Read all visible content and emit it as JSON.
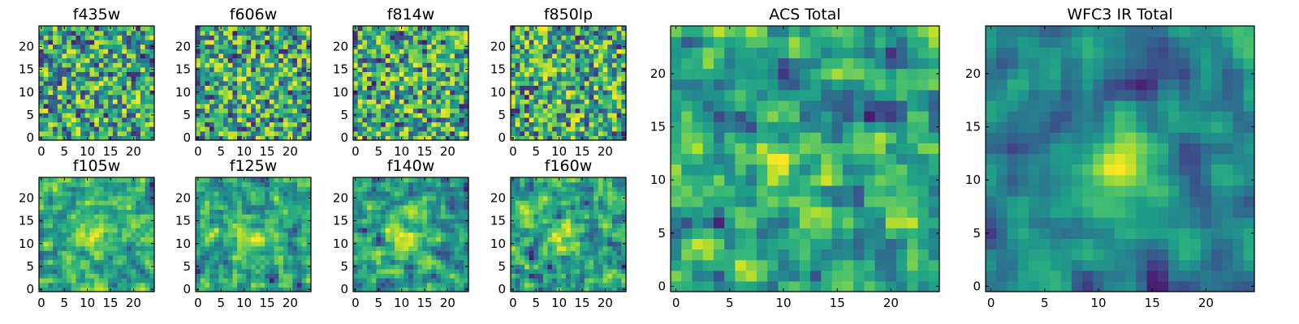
{
  "figure": {
    "colormap": "viridis",
    "colors": {
      "axis": "#000000",
      "background": "#ffffff"
    }
  },
  "chart_data": [
    {
      "type": "heatmap",
      "title": "f435w",
      "grid_size": 25,
      "xlim": [
        0,
        24
      ],
      "ylim": [
        0,
        24
      ],
      "x_ticks": [
        "0",
        "5",
        "10",
        "15",
        "20"
      ],
      "y_ticks": [
        "0",
        "5",
        "10",
        "15",
        "20"
      ],
      "value_range": [
        0,
        1
      ],
      "seed": 11,
      "smoothing": 0,
      "central_source": 0.05
    },
    {
      "type": "heatmap",
      "title": "f606w",
      "grid_size": 25,
      "xlim": [
        0,
        24
      ],
      "ylim": [
        0,
        24
      ],
      "x_ticks": [
        "0",
        "5",
        "10",
        "15",
        "20"
      ],
      "y_ticks": [
        "0",
        "5",
        "10",
        "15",
        "20"
      ],
      "value_range": [
        0,
        1
      ],
      "seed": 23,
      "smoothing": 0,
      "central_source": 0.08
    },
    {
      "type": "heatmap",
      "title": "f814w",
      "grid_size": 25,
      "xlim": [
        0,
        24
      ],
      "ylim": [
        0,
        24
      ],
      "x_ticks": [
        "0",
        "5",
        "10",
        "15",
        "20"
      ],
      "y_ticks": [
        "0",
        "5",
        "10",
        "15",
        "20"
      ],
      "value_range": [
        0,
        1
      ],
      "seed": 37,
      "smoothing": 0,
      "central_source": 0.05
    },
    {
      "type": "heatmap",
      "title": "f850lp",
      "grid_size": 25,
      "xlim": [
        0,
        24
      ],
      "ylim": [
        0,
        24
      ],
      "x_ticks": [
        "0",
        "5",
        "10",
        "15",
        "20"
      ],
      "y_ticks": [
        "0",
        "5",
        "10",
        "15",
        "20"
      ],
      "value_range": [
        0,
        1
      ],
      "seed": 41,
      "smoothing": 0,
      "central_source": 0.04
    },
    {
      "type": "heatmap",
      "title": "f105w",
      "grid_size": 25,
      "xlim": [
        0,
        24
      ],
      "ylim": [
        0,
        24
      ],
      "x_ticks": [
        "0",
        "5",
        "10",
        "15",
        "20"
      ],
      "y_ticks": [
        "0",
        "5",
        "10",
        "15",
        "20"
      ],
      "value_range": [
        0,
        1
      ],
      "seed": 53,
      "smoothing": 1,
      "central_source": 0.22
    },
    {
      "type": "heatmap",
      "title": "f125w",
      "grid_size": 25,
      "xlim": [
        0,
        24
      ],
      "ylim": [
        0,
        24
      ],
      "x_ticks": [
        "0",
        "5",
        "10",
        "15",
        "20"
      ],
      "y_ticks": [
        "0",
        "5",
        "10",
        "15",
        "20"
      ],
      "value_range": [
        0,
        1
      ],
      "seed": 67,
      "smoothing": 1,
      "central_source": 0.2
    },
    {
      "type": "heatmap",
      "title": "f140w",
      "grid_size": 25,
      "xlim": [
        0,
        24
      ],
      "ylim": [
        0,
        24
      ],
      "x_ticks": [
        "0",
        "5",
        "10",
        "15",
        "20"
      ],
      "y_ticks": [
        "0",
        "5",
        "10",
        "15",
        "20"
      ],
      "value_range": [
        0,
        1
      ],
      "seed": 71,
      "smoothing": 1,
      "central_source": 0.22
    },
    {
      "type": "heatmap",
      "title": "f160w",
      "grid_size": 25,
      "xlim": [
        0,
        24
      ],
      "ylim": [
        0,
        24
      ],
      "x_ticks": [
        "0",
        "5",
        "10",
        "15",
        "20"
      ],
      "y_ticks": [
        "0",
        "5",
        "10",
        "15",
        "20"
      ],
      "value_range": [
        0,
        1
      ],
      "seed": 83,
      "smoothing": 1,
      "central_source": 0.3
    },
    {
      "type": "heatmap",
      "title": "ACS Total",
      "grid_size": 25,
      "xlim": [
        0,
        24
      ],
      "ylim": [
        0,
        24
      ],
      "x_ticks": [
        "0",
        "5",
        "10",
        "15",
        "20"
      ],
      "y_ticks": [
        "0",
        "5",
        "10",
        "15",
        "20"
      ],
      "value_range": [
        0,
        1
      ],
      "seed": 97,
      "smoothing": 1,
      "central_source": 0.12
    },
    {
      "type": "heatmap",
      "title": "WFC3 IR Total",
      "grid_size": 25,
      "xlim": [
        0,
        24
      ],
      "ylim": [
        0,
        24
      ],
      "x_ticks": [
        "0",
        "5",
        "10",
        "15",
        "20"
      ],
      "y_ticks": [
        "0",
        "5",
        "10",
        "15",
        "20"
      ],
      "value_range": [
        0,
        1
      ],
      "seed": 101,
      "smoothing": 2,
      "central_source": 0.38
    }
  ]
}
